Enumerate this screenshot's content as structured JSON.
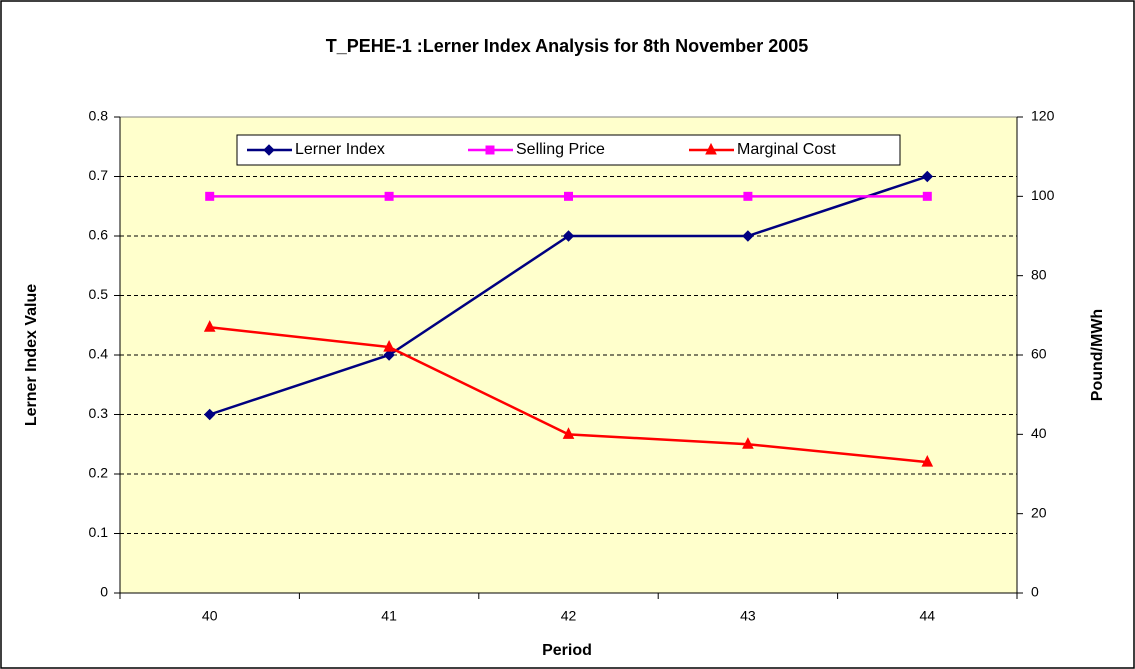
{
  "chart_data": {
    "type": "line",
    "title": "T_PEHE-1 :Lerner Index Analysis for 8th November 2005",
    "x_label": "Period",
    "y_label": "Lerner Index Value",
    "y2_label": "Pound/MWh",
    "categories": [
      "40",
      "41",
      "42",
      "43",
      "44"
    ],
    "series": [
      {
        "name": "Lerner Index",
        "color": "#000080",
        "marker": "diamond",
        "values": [
          0.3,
          0.4,
          0.6,
          0.6,
          0.7
        ]
      },
      {
        "name": "Selling Price",
        "color": "#ff00ff",
        "marker": "square",
        "axis": "y2",
        "values": [
          100,
          100,
          100,
          100,
          100
        ]
      },
      {
        "name": "Marginal Cost",
        "color": "#ff0000",
        "marker": "triangle",
        "axis": "y2",
        "values": [
          67,
          62,
          40,
          37.5,
          33
        ]
      }
    ],
    "ylim": [
      0,
      0.8
    ],
    "yticks": [
      0,
      0.1,
      0.2,
      0.3,
      0.4,
      0.5,
      0.6,
      0.7,
      0.8
    ],
    "y2lim": [
      0,
      120
    ],
    "y2ticks": [
      0,
      20,
      40,
      60,
      80,
      100,
      120
    ],
    "grid": true,
    "legend": "top"
  }
}
